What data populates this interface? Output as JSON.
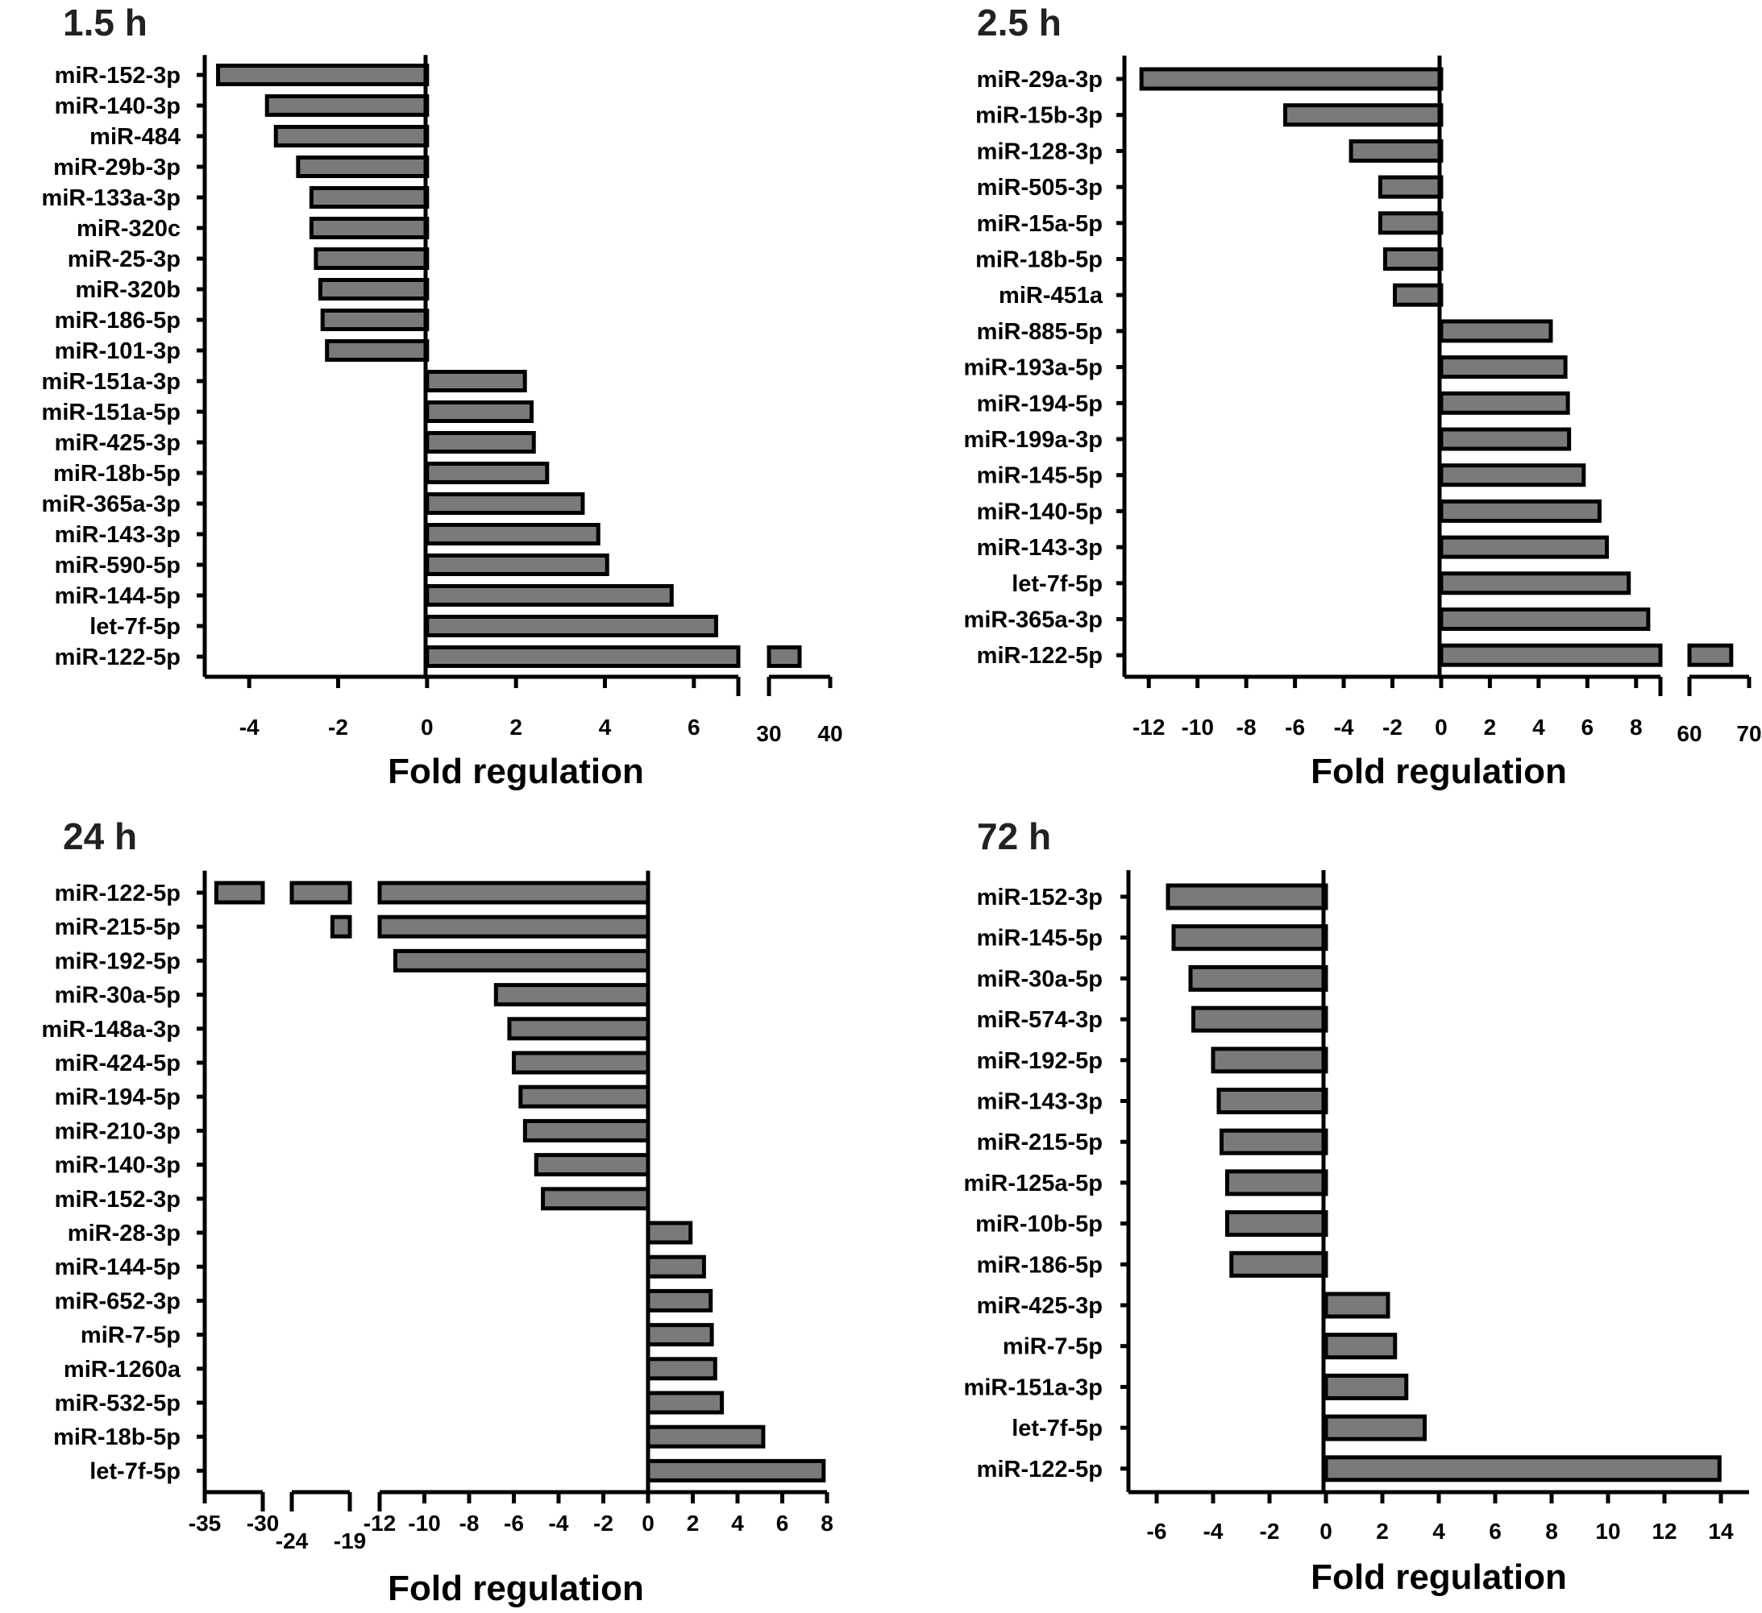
{
  "figure": {
    "xlabel": "Fold regulation"
  },
  "chart_data": [
    {
      "type": "bar",
      "orientation": "horizontal",
      "title": "1.5 h",
      "xlabel": "Fold regulation",
      "categories": [
        "miR-152-3p",
        "miR-140-3p",
        "miR-484",
        "miR-29b-3p",
        "miR-133a-3p",
        "miR-320c",
        "miR-25-3p",
        "miR-320b",
        "miR-186-5p",
        "miR-101-3p",
        "miR-151a-3p",
        "miR-151a-5p",
        "miR-425-3p",
        "miR-18b-5p",
        "miR-365a-3p",
        "miR-143-3p",
        "miR-590-5p",
        "miR-144-5p",
        "let-7f-5p",
        "miR-122-5p"
      ],
      "values": [
        -4.7,
        -3.6,
        -3.4,
        -2.9,
        -2.6,
        -2.6,
        -2.5,
        -2.4,
        -2.35,
        -2.25,
        2.2,
        2.35,
        2.4,
        2.7,
        3.5,
        3.85,
        4.05,
        5.5,
        6.5,
        35
      ],
      "x_segments": [
        {
          "range": [
            -5,
            7
          ],
          "ticks": [
            -4,
            -2,
            0,
            2,
            4,
            6
          ]
        },
        {
          "range": [
            30,
            40
          ],
          "ticks": [
            30,
            40
          ]
        }
      ]
    },
    {
      "type": "bar",
      "orientation": "horizontal",
      "title": "2.5 h",
      "xlabel": "Fold regulation",
      "categories": [
        "miR-29a-3p",
        "miR-15b-3p",
        "miR-128-3p",
        "miR-505-3p",
        "miR-15a-5p",
        "miR-18b-5p",
        "miR-451a",
        "miR-885-5p",
        "miR-193a-5p",
        "miR-194-5p",
        "miR-199a-3p",
        "miR-145-5p",
        "miR-140-5p",
        "miR-143-3p",
        "let-7f-5p",
        "miR-365a-3p",
        "miR-122-5p"
      ],
      "values": [
        -12.3,
        -6.4,
        -3.7,
        -2.5,
        -2.5,
        -2.3,
        -1.9,
        4.5,
        5.1,
        5.2,
        5.25,
        5.85,
        6.5,
        6.8,
        7.7,
        8.5,
        67
      ],
      "x_segments": [
        {
          "range": [
            -13,
            9
          ],
          "ticks": [
            -12,
            -10,
            -8,
            -6,
            -4,
            -2,
            0,
            2,
            4,
            6,
            8
          ]
        },
        {
          "range": [
            60,
            70
          ],
          "ticks": [
            60,
            70
          ]
        }
      ]
    },
    {
      "type": "bar",
      "orientation": "horizontal",
      "title": "24 h",
      "xlabel": "Fold regulation",
      "categories": [
        "miR-122-5p",
        "miR-215-5p",
        "miR-192-5p",
        "miR-30a-5p",
        "miR-148a-3p",
        "miR-424-5p",
        "miR-194-5p",
        "miR-210-3p",
        "miR-140-3p",
        "miR-152-3p",
        "miR-28-3p",
        "miR-144-5p",
        "miR-652-3p",
        "miR-7-5p",
        "miR-1260a",
        "miR-532-5p",
        "miR-18b-5p",
        "let-7f-5p"
      ],
      "values": [
        -34,
        -20.5,
        -11.3,
        -6.8,
        -6.2,
        -6.0,
        -5.7,
        -5.5,
        -5.0,
        -4.7,
        1.9,
        2.5,
        2.8,
        2.85,
        3.0,
        3.3,
        5.15,
        7.85
      ],
      "x_segments": [
        {
          "range": [
            -35,
            -30
          ],
          "ticks": [
            -35,
            -30
          ]
        },
        {
          "range": [
            -24,
            -19
          ],
          "ticks": [
            -24,
            -19
          ]
        },
        {
          "range": [
            -12,
            8
          ],
          "ticks": [
            -12,
            -10,
            -8,
            -6,
            -4,
            -2,
            0,
            2,
            4,
            6,
            8
          ]
        }
      ]
    },
    {
      "type": "bar",
      "orientation": "horizontal",
      "title": "72 h",
      "xlabel": "Fold regulation",
      "categories": [
        "miR-152-3p",
        "miR-145-5p",
        "miR-30a-5p",
        "miR-574-3p",
        "miR-192-5p",
        "miR-143-3p",
        "miR-215-5p",
        "miR-125a-5p",
        "miR-10b-5p",
        "miR-186-5p",
        "miR-425-3p",
        "miR-7-5p",
        "miR-151a-3p",
        "let-7f-5p",
        "miR-122-5p"
      ],
      "values": [
        -5.6,
        -5.4,
        -4.8,
        -4.7,
        -4.0,
        -3.8,
        -3.7,
        -3.5,
        -3.5,
        -3.35,
        2.2,
        2.45,
        2.85,
        3.5,
        13.95
      ],
      "x_segments": [
        {
          "range": [
            -7,
            15
          ],
          "ticks": [
            -6,
            -4,
            -2,
            0,
            2,
            4,
            6,
            8,
            10,
            12,
            14
          ]
        }
      ]
    }
  ]
}
